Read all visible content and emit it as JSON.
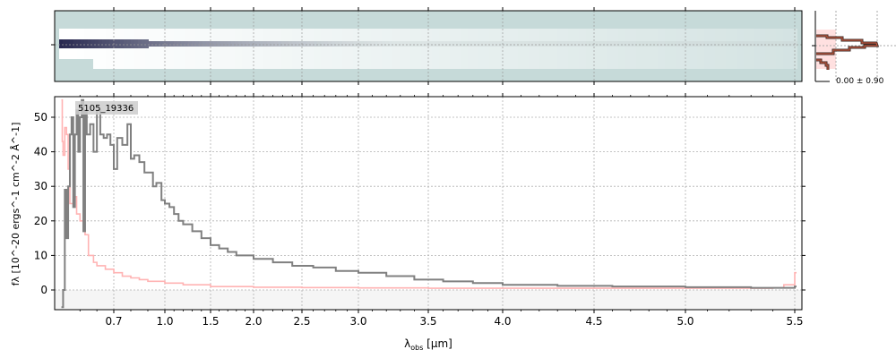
{
  "chart_data": [
    {
      "type": "line",
      "title": "5105_19336",
      "xlabel": "λobs [μm]",
      "ylabel": "fλ [10^-20 ergs^-1 cm^-2 Å^-1]",
      "xticks": [
        "0.7",
        "1.0",
        "1.5",
        "2.0",
        "2.5",
        "3.0",
        "3.5",
        "4.0",
        "4.5",
        "5.0",
        "5.5"
      ],
      "yticks": [
        "0",
        "10",
        "20",
        "30",
        "40",
        "50"
      ],
      "ylim": [
        -5.7,
        56
      ],
      "xlim": [
        0.35,
        5.52
      ],
      "grid": true,
      "series": [
        {
          "name": "flux",
          "color": "#808080",
          "x": [
            0.39,
            0.4,
            0.41,
            0.42,
            0.43,
            0.44,
            0.45,
            0.46,
            0.47,
            0.48,
            0.49,
            0.5,
            0.51,
            0.52,
            0.53,
            0.54,
            0.56,
            0.58,
            0.6,
            0.62,
            0.64,
            0.66,
            0.68,
            0.7,
            0.72,
            0.75,
            0.78,
            0.8,
            0.82,
            0.85,
            0.88,
            0.9,
            0.93,
            0.95,
            0.98,
            1.0,
            1.05,
            1.1,
            1.15,
            1.2,
            1.3,
            1.4,
            1.5,
            1.6,
            1.7,
            1.8,
            2.0,
            2.2,
            2.4,
            2.6,
            2.8,
            3.0,
            3.2,
            3.4,
            3.6,
            3.8,
            4.0,
            4.3,
            4.6,
            5.0,
            5.3,
            5.5
          ],
          "y": [
            -5,
            0,
            29,
            15,
            30,
            45,
            50,
            24,
            45,
            52,
            40,
            50,
            55,
            17,
            52,
            45,
            48,
            40,
            52,
            45,
            44,
            45,
            42,
            35,
            44,
            42,
            48,
            38,
            39,
            37,
            34,
            34,
            30,
            31,
            26,
            25,
            24,
            22,
            20,
            19,
            17,
            15,
            13,
            12,
            11,
            10,
            9,
            8,
            7,
            6.5,
            5.5,
            5,
            4,
            3,
            2.5,
            2,
            1.5,
            1.2,
            1,
            0.8,
            0.6,
            1
          ]
        },
        {
          "name": "uncertainty",
          "color": "#ffb3b3",
          "x": [
            0.39,
            0.395,
            0.4,
            0.41,
            0.42,
            0.43,
            0.44,
            0.46,
            0.48,
            0.5,
            0.52,
            0.53,
            0.55,
            0.58,
            0.6,
            0.65,
            0.7,
            0.75,
            0.8,
            0.85,
            0.9,
            1.0,
            1.2,
            1.5,
            2.0,
            2.5,
            3.0,
            3.5,
            4.0,
            4.5,
            5.0,
            5.4,
            5.45,
            5.5
          ],
          "y": [
            55,
            43,
            39,
            47,
            45,
            35,
            25,
            27,
            22,
            20,
            17,
            16,
            10,
            8,
            7,
            6,
            5,
            4,
            3.5,
            3,
            2.5,
            2,
            1.5,
            1,
            0.8,
            0.7,
            0.6,
            0.5,
            0.5,
            0.5,
            0.5,
            0.6,
            1.5,
            5
          ]
        }
      ]
    },
    {
      "type": "histogram",
      "annotation": "0.00 ± 0.90"
    }
  ]
}
